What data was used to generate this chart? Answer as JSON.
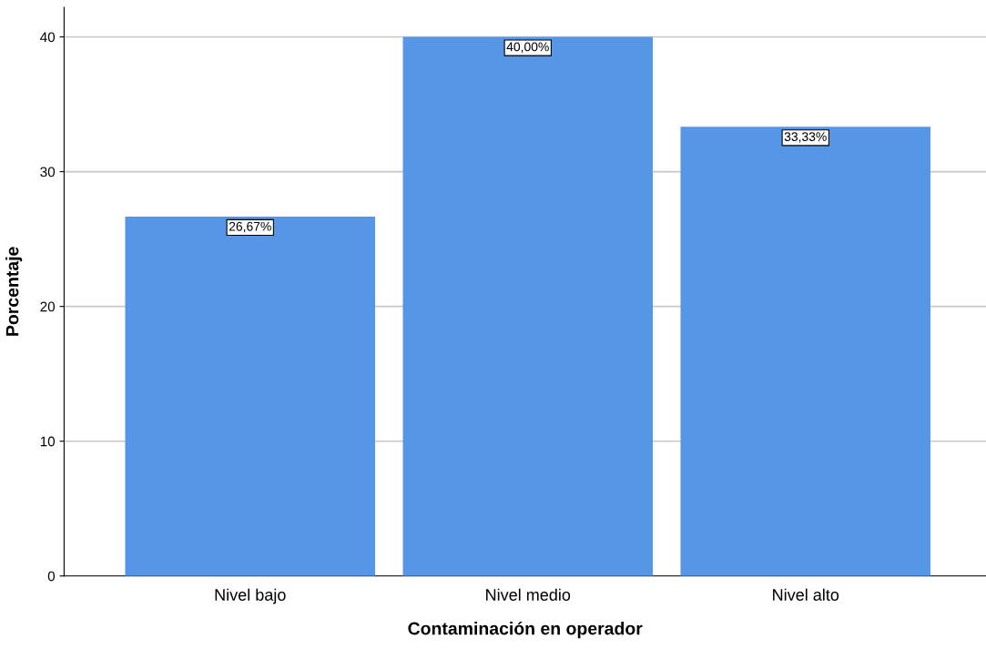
{
  "chart_data": {
    "type": "bar",
    "xlabel": "Contaminación en operador",
    "ylabel": "Porcentaje",
    "categories": [
      "Nivel bajo",
      "Nivel medio",
      "Nivel alto"
    ],
    "values": [
      26.67,
      40.0,
      33.33
    ],
    "value_labels": [
      "26,67%",
      "40,00%",
      "33,33%"
    ],
    "color": "#5596e6",
    "ylim": [
      0,
      42.2
    ],
    "yticks": [
      0,
      10,
      20,
      30,
      40
    ],
    "grid": "y",
    "legend": false
  }
}
